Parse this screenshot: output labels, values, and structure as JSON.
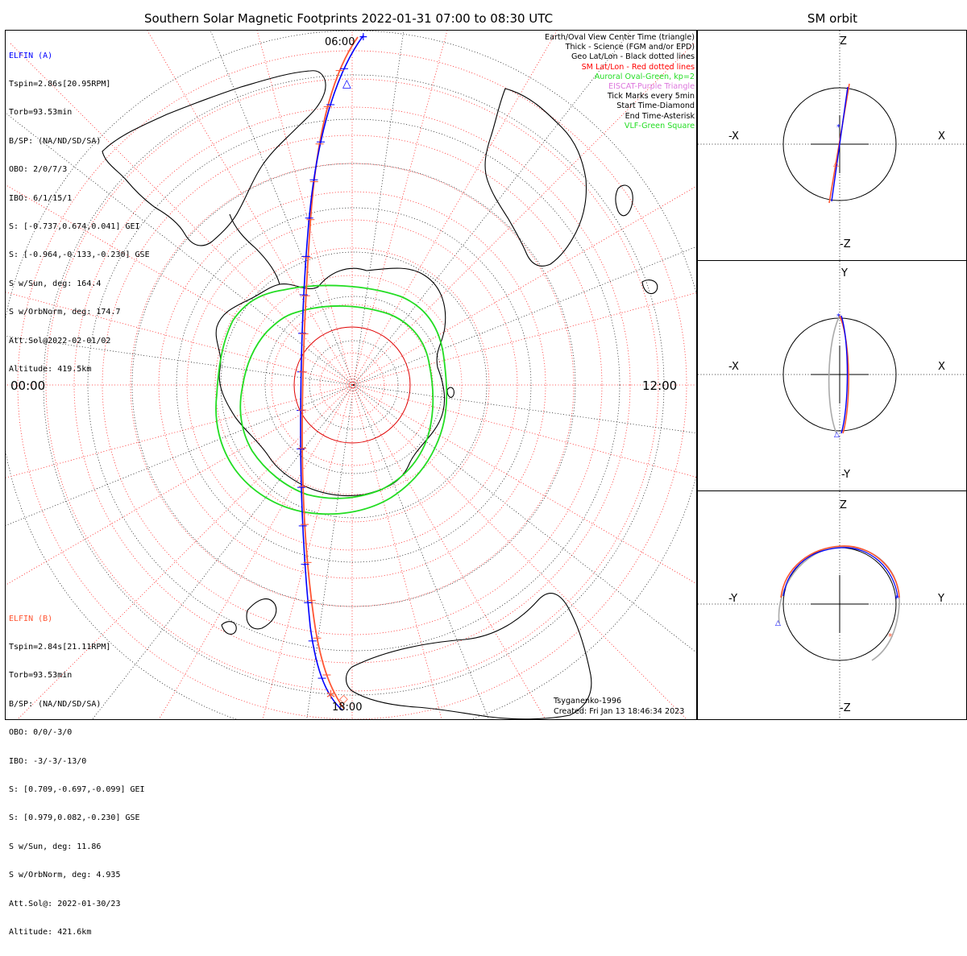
{
  "title": "Southern Solar Magnetic Footprints 2022-01-31 07:00 to 08:30 UTC",
  "side_title": "SM orbit",
  "map": {
    "time_labels": {
      "left": "00:00",
      "right": "12:00",
      "top": "06:00",
      "bottom": "18:00"
    },
    "colors": {
      "geo_grid": "#000000",
      "sm_grid": "#ff0000",
      "oval": "#22dd22",
      "elfin_a": "#0000ff",
      "elfin_b": "#ff5533"
    }
  },
  "elfin_a": {
    "name": "ELFIN (A)",
    "lines": [
      "Tspin=2.86s[20.95RPM]",
      "Torb=93.53min",
      "B/SP: (NA/ND/SD/SA)",
      "OBO: 2/0/7/3",
      "IBO: 6/1/15/1",
      "S: [-0.737,0.674,0.041] GEI",
      "S: [-0.964,-0.133,-0.230] GSE",
      "S w/Sun, deg: 164.4",
      "S w/OrbNorm, deg: 174.7",
      "Att.Sol@2022-02-01/02",
      "Altitude: 419.5km"
    ]
  },
  "elfin_b": {
    "name": "ELFIN (B)",
    "lines": [
      "Tspin=2.84s[21.11RPM]",
      "Torb=93.53min",
      "B/SP: (NA/ND/SD/SA)",
      "OBO: 0/0/-3/0",
      "IBO: -3/-3/-13/0",
      "S: [0.709,-0.697,-0.099] GEI",
      "S: [0.979,0.082,-0.230] GSE",
      "S w/Sun, deg: 11.86",
      "S w/OrbNorm, deg: 4.935",
      "Att.Sol@: 2022-01-30/23",
      "Altitude: 421.6km"
    ]
  },
  "legend": [
    {
      "text": "Earth/Oval View Center Time (triangle)",
      "color": "#000000"
    },
    {
      "text": "Thick - Science (FGM and/or EPD)",
      "color": "#000000"
    },
    {
      "text": "Geo Lat/Lon - Black dotted lines",
      "color": "#000000"
    },
    {
      "text": "SM Lat/Lon - Red dotted lines",
      "color": "#ff0000"
    },
    {
      "text": "Auroral Oval-Green, kp=2",
      "color": "#22dd22"
    },
    {
      "text": "EISCAT-Purple Triangle",
      "color": "#dd77dd"
    },
    {
      "text": "Tick Marks every 5min",
      "color": "#000000"
    },
    {
      "text": "Start Time-Diamond",
      "color": "#000000"
    },
    {
      "text": "End Time-Asterisk",
      "color": "#000000"
    },
    {
      "text": "VLF-Green Square",
      "color": "#22dd22"
    }
  ],
  "footer": {
    "model": "Tsyganenko-1996",
    "created": "Created: Fri Jan 13 18:46:34 2023"
  },
  "panels": {
    "xz": {
      "top": "Z",
      "bottom": "-Z",
      "left": "-X",
      "right": "X"
    },
    "xy": {
      "top": "Y",
      "bottom": "-Y",
      "left": "-X",
      "right": "X"
    },
    "yz": {
      "top": "Z",
      "bottom": "-Z",
      "left": "-Y",
      "right": "Y"
    }
  }
}
